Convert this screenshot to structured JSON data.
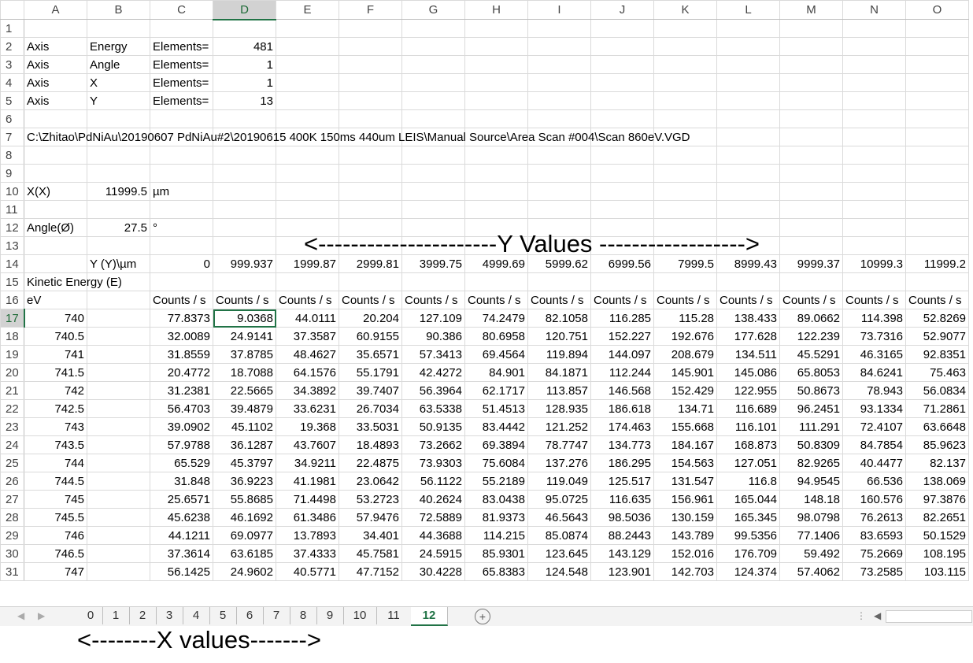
{
  "columns": [
    "A",
    "B",
    "C",
    "D",
    "E",
    "F",
    "G",
    "H",
    "I",
    "J",
    "K",
    "L",
    "M",
    "N",
    "O"
  ],
  "col_widths": [
    80,
    80,
    80,
    80,
    80,
    80,
    80,
    80,
    80,
    80,
    80,
    80,
    80,
    80,
    80
  ],
  "selected_column": "D",
  "selected_row": 17,
  "header_rows": [
    {
      "row": 1,
      "cells": []
    },
    {
      "row": 2,
      "cells": [
        {
          "col": 0,
          "v": "Axis"
        },
        {
          "col": 1,
          "v": "Energy"
        },
        {
          "col": 2,
          "v": "Elements="
        },
        {
          "col": 3,
          "v": "481",
          "num": true
        }
      ]
    },
    {
      "row": 3,
      "cells": [
        {
          "col": 0,
          "v": "Axis"
        },
        {
          "col": 1,
          "v": "Angle"
        },
        {
          "col": 2,
          "v": "Elements="
        },
        {
          "col": 3,
          "v": "1",
          "num": true
        }
      ]
    },
    {
      "row": 4,
      "cells": [
        {
          "col": 0,
          "v": "Axis"
        },
        {
          "col": 1,
          "v": "X"
        },
        {
          "col": 2,
          "v": "Elements="
        },
        {
          "col": 3,
          "v": "1",
          "num": true
        }
      ]
    },
    {
      "row": 5,
      "cells": [
        {
          "col": 0,
          "v": "Axis"
        },
        {
          "col": 1,
          "v": "Y"
        },
        {
          "col": 2,
          "v": "Elements="
        },
        {
          "col": 3,
          "v": "13",
          "num": true
        }
      ]
    },
    {
      "row": 6,
      "cells": []
    },
    {
      "row": 7,
      "cells": [
        {
          "col": 0,
          "v": "C:\\Zhitao\\PdNiAu\\20190607 PdNiAu#2\\20190615 400K 150ms 440um LEIS\\Manual Source\\Area Scan #004\\Scan 860eV.VGD",
          "span": true
        }
      ]
    },
    {
      "row": 8,
      "cells": []
    },
    {
      "row": 9,
      "cells": []
    },
    {
      "row": 10,
      "cells": [
        {
          "col": 0,
          "v": "X(X)"
        },
        {
          "col": 1,
          "v": "11999.5",
          "num": true
        },
        {
          "col": 2,
          "v": "µm"
        }
      ]
    },
    {
      "row": 11,
      "cells": []
    },
    {
      "row": 12,
      "cells": [
        {
          "col": 0,
          "v": "Angle(Ø)"
        },
        {
          "col": 1,
          "v": "27.5",
          "num": true
        },
        {
          "col": 2,
          "v": "°"
        }
      ]
    },
    {
      "row": 13,
      "cells": []
    },
    {
      "row": 14,
      "cells": [
        {
          "col": 1,
          "v": "Y (Y)\\µm"
        },
        {
          "col": 2,
          "v": "0",
          "num": true
        },
        {
          "col": 3,
          "v": "999.937",
          "num": true
        },
        {
          "col": 4,
          "v": "1999.87",
          "num": true
        },
        {
          "col": 5,
          "v": "2999.81",
          "num": true
        },
        {
          "col": 6,
          "v": "3999.75",
          "num": true
        },
        {
          "col": 7,
          "v": "4999.69",
          "num": true
        },
        {
          "col": 8,
          "v": "5999.62",
          "num": true
        },
        {
          "col": 9,
          "v": "6999.56",
          "num": true
        },
        {
          "col": 10,
          "v": "7999.5",
          "num": true
        },
        {
          "col": 11,
          "v": "8999.43",
          "num": true
        },
        {
          "col": 12,
          "v": "9999.37",
          "num": true
        },
        {
          "col": 13,
          "v": "10999.3",
          "num": true
        },
        {
          "col": 14,
          "v": "11999.2",
          "num": true
        }
      ]
    },
    {
      "row": 15,
      "cells": [
        {
          "col": 0,
          "v": "Kinetic Energy (E)",
          "span": true
        }
      ]
    },
    {
      "row": 16,
      "cells": [
        {
          "col": 0,
          "v": "eV"
        },
        {
          "col": 2,
          "v": "Counts / s"
        },
        {
          "col": 3,
          "v": "Counts / s"
        },
        {
          "col": 4,
          "v": "Counts / s"
        },
        {
          "col": 5,
          "v": "Counts / s"
        },
        {
          "col": 6,
          "v": "Counts / s"
        },
        {
          "col": 7,
          "v": "Counts / s"
        },
        {
          "col": 8,
          "v": "Counts / s"
        },
        {
          "col": 9,
          "v": "Counts / s"
        },
        {
          "col": 10,
          "v": "Counts / s"
        },
        {
          "col": 11,
          "v": "Counts / s"
        },
        {
          "col": 12,
          "v": "Counts / s"
        },
        {
          "col": 13,
          "v": "Counts / s"
        },
        {
          "col": 14,
          "v": "Counts / s"
        }
      ]
    }
  ],
  "data_rows": [
    {
      "row": 17,
      "energy": "740",
      "values": [
        "77.8373",
        "9.0368",
        "44.0111",
        "20.204",
        "127.109",
        "74.2479",
        "82.1058",
        "116.285",
        "115.28",
        "138.433",
        "89.0662",
        "114.398",
        "52.8269"
      ]
    },
    {
      "row": 18,
      "energy": "740.5",
      "values": [
        "32.0089",
        "24.9141",
        "37.3587",
        "60.9155",
        "90.386",
        "80.6958",
        "120.751",
        "152.227",
        "192.676",
        "177.628",
        "122.239",
        "73.7316",
        "52.9077"
      ]
    },
    {
      "row": 19,
      "energy": "741",
      "values": [
        "31.8559",
        "37.8785",
        "48.4627",
        "35.6571",
        "57.3413",
        "69.4564",
        "119.894",
        "144.097",
        "208.679",
        "134.511",
        "45.5291",
        "46.3165",
        "92.8351"
      ]
    },
    {
      "row": 20,
      "energy": "741.5",
      "values": [
        "20.4772",
        "18.7088",
        "64.1576",
        "55.1791",
        "42.4272",
        "84.901",
        "84.1871",
        "112.244",
        "145.901",
        "145.086",
        "65.8053",
        "84.6241",
        "75.463"
      ]
    },
    {
      "row": 21,
      "energy": "742",
      "values": [
        "31.2381",
        "22.5665",
        "34.3892",
        "39.7407",
        "56.3964",
        "62.1717",
        "113.857",
        "146.568",
        "152.429",
        "122.955",
        "50.8673",
        "78.943",
        "56.0834"
      ]
    },
    {
      "row": 22,
      "energy": "742.5",
      "values": [
        "56.4703",
        "39.4879",
        "33.6231",
        "26.7034",
        "63.5338",
        "51.4513",
        "128.935",
        "186.618",
        "134.71",
        "116.689",
        "96.2451",
        "93.1334",
        "71.2861"
      ]
    },
    {
      "row": 23,
      "energy": "743",
      "values": [
        "39.0902",
        "45.1102",
        "19.368",
        "33.5031",
        "50.9135",
        "83.4442",
        "121.252",
        "174.463",
        "155.668",
        "116.101",
        "111.291",
        "72.4107",
        "63.6648"
      ]
    },
    {
      "row": 24,
      "energy": "743.5",
      "values": [
        "57.9788",
        "36.1287",
        "43.7607",
        "18.4893",
        "73.2662",
        "69.3894",
        "78.7747",
        "134.773",
        "184.167",
        "168.873",
        "50.8309",
        "84.7854",
        "85.9623"
      ]
    },
    {
      "row": 25,
      "energy": "744",
      "values": [
        "65.529",
        "45.3797",
        "34.9211",
        "22.4875",
        "73.9303",
        "75.6084",
        "137.276",
        "186.295",
        "154.563",
        "127.051",
        "82.9265",
        "40.4477",
        "82.137"
      ]
    },
    {
      "row": 26,
      "energy": "744.5",
      "values": [
        "31.848",
        "36.9223",
        "41.1981",
        "23.0642",
        "56.1122",
        "55.2189",
        "119.049",
        "125.517",
        "131.547",
        "116.8",
        "94.9545",
        "66.536",
        "138.069"
      ]
    },
    {
      "row": 27,
      "energy": "745",
      "values": [
        "25.6571",
        "55.8685",
        "71.4498",
        "53.2723",
        "40.2624",
        "83.0438",
        "95.0725",
        "116.635",
        "156.961",
        "165.044",
        "148.18",
        "160.576",
        "97.3876"
      ]
    },
    {
      "row": 28,
      "energy": "745.5",
      "values": [
        "45.6238",
        "46.1692",
        "61.3486",
        "57.9476",
        "72.5889",
        "81.9373",
        "46.5643",
        "98.5036",
        "130.159",
        "165.345",
        "98.0798",
        "76.2613",
        "82.2651"
      ]
    },
    {
      "row": 29,
      "energy": "746",
      "values": [
        "44.1211",
        "69.0977",
        "13.7893",
        "34.401",
        "44.3688",
        "114.215",
        "85.0874",
        "88.2443",
        "143.789",
        "99.5356",
        "77.1406",
        "83.6593",
        "50.1529"
      ]
    },
    {
      "row": 30,
      "energy": "746.5",
      "values": [
        "37.3614",
        "63.6185",
        "37.4333",
        "45.7581",
        "24.5915",
        "85.9301",
        "123.645",
        "143.129",
        "152.016",
        "176.709",
        "59.492",
        "75.2669",
        "108.195"
      ]
    },
    {
      "row": 31,
      "energy": "747",
      "values": [
        "56.1425",
        "24.9602",
        "40.5771",
        "47.7152",
        "30.4228",
        "65.8383",
        "124.548",
        "123.901",
        "142.703",
        "124.374",
        "57.4062",
        "73.2585",
        "103.115"
      ]
    }
  ],
  "y_values_label": "<----------------------Y Values ------------------>",
  "x_values_label": "<--------X values------->",
  "sheet_tabs": [
    "0",
    "1",
    "2",
    "3",
    "4",
    "5",
    "6",
    "7",
    "8",
    "9",
    "10",
    "11",
    "12"
  ],
  "active_tab": "12",
  "add_sheet_symbol": "+"
}
